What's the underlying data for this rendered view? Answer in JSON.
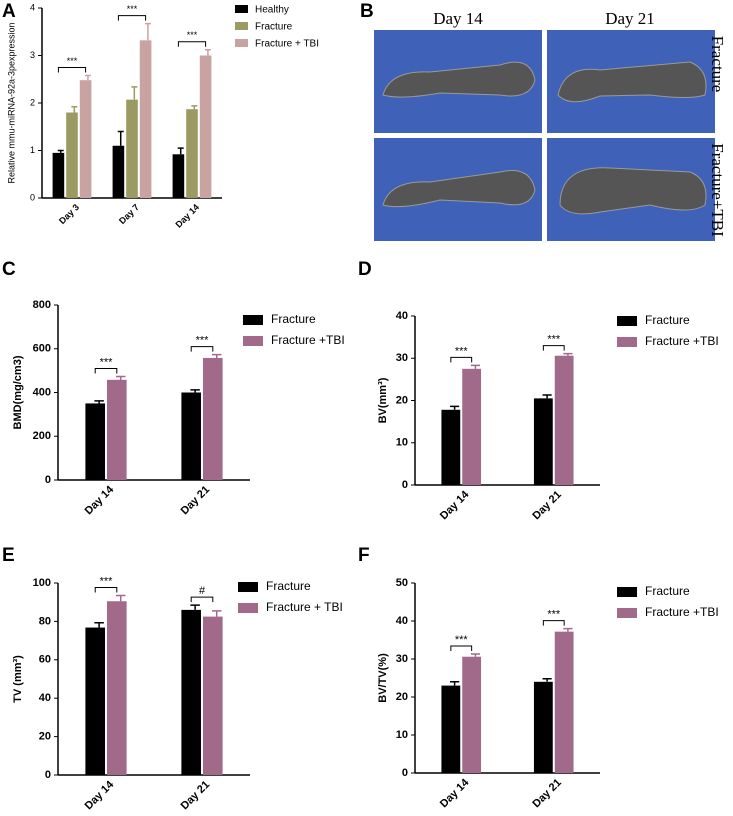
{
  "chart_data": [
    {
      "type": "bar",
      "panel": "A",
      "ylabel": "Relative mmu-miRNA-92a-3pexpression",
      "categories": [
        "Day 3",
        "Day 7",
        "Day 14"
      ],
      "series": [
        {
          "name": "Healthy",
          "color": "#000000",
          "values": [
            0.95,
            1.1,
            0.92
          ],
          "errors": [
            0.05,
            0.3,
            0.13
          ]
        },
        {
          "name": "Fracture",
          "color": "#9b9a63",
          "values": [
            1.8,
            2.07,
            1.87
          ],
          "errors": [
            0.12,
            0.27,
            0.07
          ]
        },
        {
          "name": "Fracture + TBI",
          "color": "#c9a2a2",
          "values": [
            2.48,
            3.32,
            3.0
          ],
          "errors": [
            0.1,
            0.35,
            0.12
          ]
        }
      ],
      "annotations": [
        "***",
        "***",
        "***"
      ],
      "ylim": [
        0,
        4
      ],
      "yticks": [
        0,
        1,
        2,
        3,
        4
      ]
    },
    {
      "type": "bar",
      "panel": "C",
      "ylabel": "BMD(mg/cm3)",
      "categories": [
        "Day 14",
        "Day 21"
      ],
      "series": [
        {
          "name": "Fracture",
          "color": "#000000",
          "values": [
            350,
            400
          ],
          "errors": [
            12,
            12
          ]
        },
        {
          "name": "Fracture +TBI",
          "color": "#a1698a",
          "values": [
            458,
            558
          ],
          "errors": [
            15,
            15
          ]
        }
      ],
      "annotations": [
        "***",
        "***"
      ],
      "ylim": [
        0,
        800
      ],
      "yticks": [
        0,
        200,
        400,
        600,
        800
      ]
    },
    {
      "type": "bar",
      "panel": "D",
      "ylabel": "BV(mm³)",
      "categories": [
        "Day 14",
        "Day 21"
      ],
      "series": [
        {
          "name": "Fracture",
          "color": "#000000",
          "values": [
            17.8,
            20.5
          ],
          "errors": [
            0.8,
            0.8
          ]
        },
        {
          "name": "Fracture +TBI",
          "color": "#a1698a",
          "values": [
            27.5,
            30.6
          ],
          "errors": [
            0.8,
            0.5
          ]
        }
      ],
      "annotations": [
        "***",
        "***"
      ],
      "ylim": [
        0,
        40
      ],
      "yticks": [
        0,
        10,
        20,
        30,
        40
      ]
    },
    {
      "type": "bar",
      "panel": "E",
      "ylabel": "TV (mm³)",
      "categories": [
        "Day 14",
        "Day 21"
      ],
      "series": [
        {
          "name": "Fracture",
          "color": "#000000",
          "values": [
            76.8,
            86
          ],
          "errors": [
            2.5,
            2.5
          ]
        },
        {
          "name": "Fracture + TBI",
          "color": "#a1698a",
          "values": [
            90.5,
            82.5
          ],
          "errors": [
            3,
            3
          ]
        }
      ],
      "annotations": [
        "***",
        "#"
      ],
      "ylim": [
        0,
        100
      ],
      "yticks": [
        0,
        20,
        40,
        60,
        80,
        100
      ]
    },
    {
      "type": "bar",
      "panel": "F",
      "ylabel": "BV/TV(%)",
      "categories": [
        "Day 14",
        "Day 21"
      ],
      "series": [
        {
          "name": "Fracture",
          "color": "#000000",
          "values": [
            23,
            24
          ],
          "errors": [
            1,
            0.8
          ]
        },
        {
          "name": "Fracture +TBI",
          "color": "#a1698a",
          "values": [
            30.6,
            37.2
          ],
          "errors": [
            0.7,
            0.8
          ]
        }
      ],
      "annotations": [
        "***",
        "***"
      ],
      "ylim": [
        0,
        50
      ],
      "yticks": [
        0,
        10,
        20,
        30,
        40,
        50
      ]
    }
  ],
  "image_panel": {
    "panel": "B",
    "columns": [
      "Day 14",
      "Day 21"
    ],
    "rows": [
      "Fracture",
      "Fracture+TBI"
    ]
  }
}
